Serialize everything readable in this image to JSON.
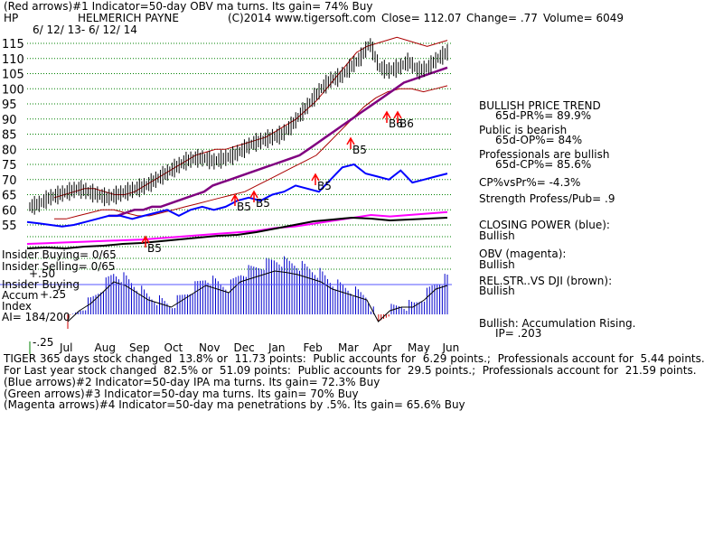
{
  "header": {
    "line1": "(Red arrows)#1 Indicator=50-day OBV ma turns. Its gain= 74% Buy",
    "ticker": "HP",
    "company": "HELMERICH PAYNE",
    "site": "(C)2014 www.tigersoft.com",
    "close": "Close= 112.07",
    "change": "Change= .77",
    "volume": "Volume= 6049",
    "date_range": "6/ 12/ 13- 6/ 12/ 14"
  },
  "right_panel": {
    "trend_title": "BULLISH PRICE TREND",
    "pr": "65d-PR%= 89.9%",
    "public_1": "Public is bearish",
    "op": "65d-OP%= 84%",
    "pros_1": "Professionals are bullish",
    "cp": "65d-CP%= 85.6%",
    "cpvspr": "CP%vsPr%= -4.3%",
    "strength": "Strength Profess/Pub= .9",
    "closing_power": "CLOSING POWER (blue):",
    "closing_power_state": "Bullish",
    "obv": "OBV (magenta):",
    "obv_state": "Bullish",
    "relstr": "REL.STR..VS DJI (brown):",
    "relstr_state": "Bullish",
    "accum": "Bullish: Accumulation Rising.",
    "ip": "IP= .203"
  },
  "left_labels": {
    "insider_buying": "Insider Buying= 0/65",
    "insider_selling": "Insider Selling= 0/65",
    "insider_buying2": "Insider Buying",
    "accum": "Accum",
    "index": "Index",
    "ai": "AI= 184/200",
    "p50": "+.50",
    "p25": "+.25",
    "m25": "-.25"
  },
  "footer": {
    "line1": "TIGER 365 days stock changed  13.8% or  11.73 points:  Public accounts for  6.29 points.;  Professionals account for  5.44 points.",
    "line2": "For Last year stock changed  82.5% or  51.09 points:  Public accounts for  29.5 points.;  Professionals account for  21.59 points.",
    "line3": "(Blue arrows)#2 Indicator=50-day IPA ma turns. Its gain= 72.3% Buy",
    "line4": "(Green arrows)#3 Indicator=50-day ma turns. Its gain= 70% Buy",
    "line5": "(Magenta arrows)#4 Indicator=50-day ma penetrations by .5%. Its gain= 65.6% Buy"
  },
  "colors": {
    "price": "#000000",
    "upper_band": "#aa0000",
    "ma50": "#800080",
    "closing_power": "#0000ff",
    "obv": "#ff00ff",
    "relstr": "#000000",
    "accum_bars": "#0000cc",
    "accum_neg": "#cc0000",
    "grid": "#008000",
    "arrows": "#ff0000"
  },
  "chart_data": {
    "type": "line",
    "title": "HELMERICH PAYNE",
    "xlabel": "",
    "ylabel": "",
    "ylim": [
      55,
      115
    ],
    "y_ticks": [
      55,
      60,
      65,
      70,
      75,
      80,
      85,
      90,
      95,
      100,
      105,
      110,
      115
    ],
    "x_labels": [
      "Jul",
      "Aug",
      "Sep",
      "Oct",
      "Nov",
      "Dec",
      "Jan",
      "Feb",
      "Mar",
      "Apr",
      "May",
      "Jun"
    ],
    "series": [
      {
        "values": [
          61,
          62,
          64,
          65,
          66,
          67,
          66,
          65,
          64,
          65,
          66,
          67,
          68,
          70,
          72,
          74,
          76,
          77,
          77,
          76,
          77,
          78,
          80,
          82,
          83,
          84,
          85,
          88,
          92,
          96,
          100,
          103,
          104,
          107,
          110,
          115,
          107,
          106,
          107,
          109,
          106,
          107,
          110,
          112
        ]
      },
      {
        "values": [
          64,
          65,
          66,
          67,
          67,
          66,
          65,
          65,
          66,
          68,
          70,
          72,
          74,
          76,
          78,
          79,
          80,
          80,
          81,
          82,
          83,
          84,
          86,
          88,
          90,
          93,
          96,
          100,
          104,
          108,
          112,
          114,
          115,
          116,
          117,
          116,
          115,
          114,
          115,
          116
        ]
      },
      {
        "values": [
          58,
          58,
          59,
          60,
          60,
          61,
          61,
          62,
          63,
          64,
          65,
          66,
          68,
          69,
          70,
          71,
          72,
          73,
          74,
          75,
          76,
          77,
          78,
          80,
          82,
          84,
          86,
          88,
          90,
          92,
          94,
          96,
          98,
          100,
          102,
          103,
          104,
          105,
          106,
          107
        ]
      },
      {
        "values": [
          57,
          57,
          58,
          59,
          60,
          60,
          59,
          58,
          58,
          59,
          60,
          61,
          62,
          63,
          64,
          65,
          66,
          68,
          70,
          72,
          74,
          76,
          78,
          82,
          86,
          90,
          94,
          97,
          99,
          100,
          100,
          99,
          100,
          101
        ]
      },
      {
        "values": [
          56,
          55.5,
          55,
          54.5,
          55,
          56,
          57,
          58,
          58,
          57,
          58,
          59,
          60,
          58,
          60,
          61,
          60,
          61,
          63,
          64,
          63,
          65,
          66,
          68,
          67,
          66,
          70,
          74,
          75,
          72,
          71,
          70,
          73,
          69,
          70,
          71,
          72
        ]
      },
      {
        "values": [
          -0.1,
          0.05,
          0.15,
          0.3,
          0.45,
          0.4,
          0.3,
          0.2,
          0.15,
          0.1,
          0.2,
          0.3,
          0.4,
          0.35,
          0.3,
          0.45,
          0.5,
          0.55,
          0.6,
          0.58,
          0.55,
          0.5,
          0.45,
          0.35,
          0.3,
          0.25,
          0.2,
          -0.1,
          0.05,
          0.1,
          0.1,
          0.2,
          0.35,
          0.4
        ]
      }
    ],
    "annotations": [
      "B5",
      "B5",
      "B5",
      "B5",
      "B5",
      "B6",
      "B6"
    ]
  }
}
